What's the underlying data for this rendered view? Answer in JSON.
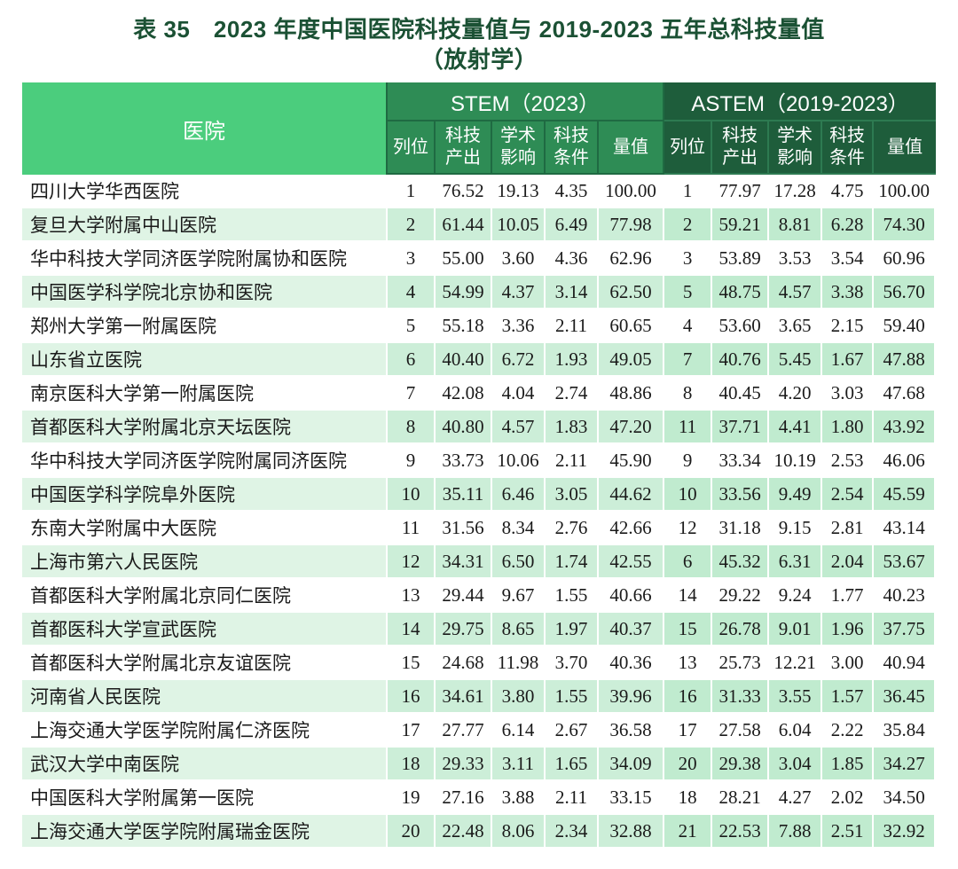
{
  "title": {
    "line1": "表 35　2023 年度中国医院科技量值与 2019-2023 五年总科技量值",
    "line2": "（放射学）"
  },
  "table": {
    "header": {
      "hospital": "医院",
      "stem_title": "STEM（2023）",
      "astem_title": "ASTEM（2019-2023）",
      "sub_labels": [
        "列位",
        "科技\n产出",
        "学术\n影响",
        "科技\n条件",
        "量值"
      ]
    },
    "rows": [
      {
        "hospital": "四川大学华西医院",
        "stem": [
          "1",
          "76.52",
          "19.13",
          "4.35",
          "100.00"
        ],
        "astem": [
          "1",
          "77.97",
          "17.28",
          "4.75",
          "100.00"
        ]
      },
      {
        "hospital": "复旦大学附属中山医院",
        "stem": [
          "2",
          "61.44",
          "10.05",
          "6.49",
          "77.98"
        ],
        "astem": [
          "2",
          "59.21",
          "8.81",
          "6.28",
          "74.30"
        ]
      },
      {
        "hospital": "华中科技大学同济医学院附属协和医院",
        "stem": [
          "3",
          "55.00",
          "3.60",
          "4.36",
          "62.96"
        ],
        "astem": [
          "3",
          "53.89",
          "3.53",
          "3.54",
          "60.96"
        ]
      },
      {
        "hospital": "中国医学科学院北京协和医院",
        "stem": [
          "4",
          "54.99",
          "4.37",
          "3.14",
          "62.50"
        ],
        "astem": [
          "5",
          "48.75",
          "4.57",
          "3.38",
          "56.70"
        ]
      },
      {
        "hospital": "郑州大学第一附属医院",
        "stem": [
          "5",
          "55.18",
          "3.36",
          "2.11",
          "60.65"
        ],
        "astem": [
          "4",
          "53.60",
          "3.65",
          "2.15",
          "59.40"
        ]
      },
      {
        "hospital": "山东省立医院",
        "stem": [
          "6",
          "40.40",
          "6.72",
          "1.93",
          "49.05"
        ],
        "astem": [
          "7",
          "40.76",
          "5.45",
          "1.67",
          "47.88"
        ]
      },
      {
        "hospital": "南京医科大学第一附属医院",
        "stem": [
          "7",
          "42.08",
          "4.04",
          "2.74",
          "48.86"
        ],
        "astem": [
          "8",
          "40.45",
          "4.20",
          "3.03",
          "47.68"
        ]
      },
      {
        "hospital": "首都医科大学附属北京天坛医院",
        "stem": [
          "8",
          "40.80",
          "4.57",
          "1.83",
          "47.20"
        ],
        "astem": [
          "11",
          "37.71",
          "4.41",
          "1.80",
          "43.92"
        ]
      },
      {
        "hospital": "华中科技大学同济医学院附属同济医院",
        "stem": [
          "9",
          "33.73",
          "10.06",
          "2.11",
          "45.90"
        ],
        "astem": [
          "9",
          "33.34",
          "10.19",
          "2.53",
          "46.06"
        ]
      },
      {
        "hospital": "中国医学科学院阜外医院",
        "stem": [
          "10",
          "35.11",
          "6.46",
          "3.05",
          "44.62"
        ],
        "astem": [
          "10",
          "33.56",
          "9.49",
          "2.54",
          "45.59"
        ]
      },
      {
        "hospital": "东南大学附属中大医院",
        "stem": [
          "11",
          "31.56",
          "8.34",
          "2.76",
          "42.66"
        ],
        "astem": [
          "12",
          "31.18",
          "9.15",
          "2.81",
          "43.14"
        ]
      },
      {
        "hospital": "上海市第六人民医院",
        "stem": [
          "12",
          "34.31",
          "6.50",
          "1.74",
          "42.55"
        ],
        "astem": [
          "6",
          "45.32",
          "6.31",
          "2.04",
          "53.67"
        ]
      },
      {
        "hospital": "首都医科大学附属北京同仁医院",
        "stem": [
          "13",
          "29.44",
          "9.67",
          "1.55",
          "40.66"
        ],
        "astem": [
          "14",
          "29.22",
          "9.24",
          "1.77",
          "40.23"
        ]
      },
      {
        "hospital": "首都医科大学宣武医院",
        "stem": [
          "14",
          "29.75",
          "8.65",
          "1.97",
          "40.37"
        ],
        "astem": [
          "15",
          "26.78",
          "9.01",
          "1.96",
          "37.75"
        ]
      },
      {
        "hospital": "首都医科大学附属北京友谊医院",
        "stem": [
          "15",
          "24.68",
          "11.98",
          "3.70",
          "40.36"
        ],
        "astem": [
          "13",
          "25.73",
          "12.21",
          "3.00",
          "40.94"
        ]
      },
      {
        "hospital": "河南省人民医院",
        "stem": [
          "16",
          "34.61",
          "3.80",
          "1.55",
          "39.96"
        ],
        "astem": [
          "16",
          "31.33",
          "3.55",
          "1.57",
          "36.45"
        ]
      },
      {
        "hospital": "上海交通大学医学院附属仁济医院",
        "stem": [
          "17",
          "27.77",
          "6.14",
          "2.67",
          "36.58"
        ],
        "astem": [
          "17",
          "27.58",
          "6.04",
          "2.22",
          "35.84"
        ]
      },
      {
        "hospital": "武汉大学中南医院",
        "stem": [
          "18",
          "29.33",
          "3.11",
          "1.65",
          "34.09"
        ],
        "astem": [
          "20",
          "29.38",
          "3.04",
          "1.85",
          "34.27"
        ]
      },
      {
        "hospital": "中国医科大学附属第一医院",
        "stem": [
          "19",
          "27.16",
          "3.88",
          "2.11",
          "33.15"
        ],
        "astem": [
          "18",
          "28.21",
          "4.27",
          "2.02",
          "34.50"
        ]
      },
      {
        "hospital": "上海交通大学医学院附属瑞金医院",
        "stem": [
          "20",
          "22.48",
          "8.06",
          "2.34",
          "32.88"
        ],
        "astem": [
          "21",
          "22.53",
          "7.88",
          "2.51",
          "32.92"
        ]
      }
    ]
  },
  "colors": {
    "title_text": "#1b5134",
    "hospital_header": "#4bcd7d",
    "stem_header": "#2e8c55",
    "astem_header": "#1e5d3b",
    "stem_header_border": "#1f6a42",
    "astem_header_border": "#2d7a51",
    "row_alt_hospital": "#dff4e5",
    "row_alt_stem": "#cceed8",
    "row_alt_astem": "#c0ebcf",
    "body_text": "#1a1a1a"
  }
}
